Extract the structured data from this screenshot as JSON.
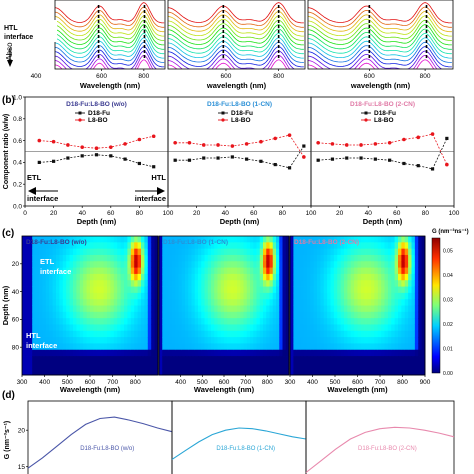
{
  "panel_labels": {
    "b": "(b)",
    "c": "(c)",
    "d": "(d)"
  },
  "chart_data": [
    {
      "id": "a",
      "type": "line",
      "title": "",
      "ylabel": "Absorp",
      "xlabel": "",
      "annotation": "HTL interface",
      "subplots": [
        {
          "xlabel": "Wavelength (nm)",
          "x_ticks": [
            600,
            800
          ],
          "markers_at": [
            586,
            803
          ]
        },
        {
          "xlabel": "wavelength (nm)",
          "x_ticks": [
            600,
            800
          ],
          "markers_at": [
            590,
            800
          ]
        },
        {
          "xlabel": "wavelength (nm)",
          "x_ticks": [
            600,
            800
          ],
          "markers_at": [
            600,
            805
          ]
        }
      ],
      "x_tick_extra": "400",
      "xlim": [
        380,
        900
      ],
      "n_curves": 14
    },
    {
      "id": "b",
      "type": "line",
      "ylabel": "Component ratio (w/w)",
      "ylim": [
        0.0,
        1.0
      ],
      "y_ticks": [
        "0.0",
        "0.2",
        "0.4",
        "0.6",
        "0.8",
        "1.0"
      ],
      "xlim": [
        0,
        100
      ],
      "x_ticks": [
        "0",
        "20",
        "40",
        "60",
        "80",
        "100"
      ],
      "reference_line": 0.5,
      "annotations": {
        "left": "ETL interface",
        "right": "HTL interface"
      },
      "subplots": [
        {
          "title": "D18-Fu:L8-BO (w/o)",
          "title_color": "#3a3a90",
          "xlabel": "Depth (nm)",
          "series": [
            {
              "name": "D18-Fu",
              "color": "#111111",
              "x": [
                10,
                20,
                30,
                40,
                50,
                60,
                70,
                80,
                90
              ],
              "values": [
                0.4,
                0.41,
                0.44,
                0.46,
                0.47,
                0.46,
                0.43,
                0.39,
                0.36
              ]
            },
            {
              "name": "L8-BO",
              "color": "#e8151c",
              "x": [
                10,
                20,
                30,
                40,
                50,
                60,
                70,
                80,
                90
              ],
              "values": [
                0.6,
                0.59,
                0.56,
                0.54,
                0.53,
                0.54,
                0.57,
                0.61,
                0.64
              ]
            }
          ]
        },
        {
          "title": "D18-Fu:L8-BO (1-CN)",
          "title_color": "#2a8fd6",
          "xlabel": "Depth (nm)",
          "series": [
            {
              "name": "D18-Fu",
              "color": "#111111",
              "x": [
                5,
                15,
                25,
                35,
                45,
                55,
                65,
                75,
                85,
                95
              ],
              "values": [
                0.42,
                0.42,
                0.44,
                0.44,
                0.45,
                0.43,
                0.41,
                0.38,
                0.35,
                0.55
              ]
            },
            {
              "name": "L8-BO",
              "color": "#e8151c",
              "x": [
                5,
                15,
                25,
                35,
                45,
                55,
                65,
                75,
                85,
                95
              ],
              "values": [
                0.58,
                0.58,
                0.56,
                0.56,
                0.55,
                0.57,
                0.59,
                0.62,
                0.65,
                0.45
              ]
            }
          ]
        },
        {
          "title": "D18-Fu:L8-BO (2-CN)",
          "title_color": "#e07aa6",
          "xlabel": "Depth (nm)",
          "series": [
            {
              "name": "D18-Fu",
              "color": "#111111",
              "x": [
                5,
                15,
                25,
                35,
                45,
                55,
                65,
                75,
                85,
                95
              ],
              "values": [
                0.42,
                0.43,
                0.44,
                0.44,
                0.43,
                0.42,
                0.39,
                0.37,
                0.34,
                0.62
              ]
            },
            {
              "name": "L8-BO",
              "color": "#e8151c",
              "x": [
                5,
                15,
                25,
                35,
                45,
                55,
                65,
                75,
                85,
                95
              ],
              "values": [
                0.58,
                0.57,
                0.56,
                0.56,
                0.57,
                0.58,
                0.61,
                0.63,
                0.66,
                0.38
              ]
            }
          ]
        }
      ]
    },
    {
      "id": "c",
      "type": "heatmap",
      "ylabel": "Depth (nm)",
      "ylim": [
        100,
        0
      ],
      "y_ticks": [
        "20",
        "40",
        "60",
        "80"
      ],
      "xlim": [
        300,
        900
      ],
      "annotations": {
        "top": "ETL interface",
        "bottom": "HTL interface"
      },
      "colorbar": {
        "label": "G (nm⁻³ns⁻¹)",
        "ticks": [
          "0.00",
          "0.01",
          "0.02",
          "0.03",
          "0.04",
          "0.05"
        ],
        "range": [
          0.0,
          0.055
        ]
      },
      "subplots": [
        {
          "title": "D18-Fu:L8-BO (w/o)",
          "title_color": "#3a3a90",
          "xlabel": "Wavelength (nm)",
          "x_ticks": [
            "300",
            "400",
            "500",
            "600",
            "700",
            "800"
          ]
        },
        {
          "title": "D18-Fu:L8-BO (1-CN)",
          "title_color": "#2a8fd6",
          "xlabel": "Wavelength (nm)",
          "x_ticks": [
            "400",
            "500",
            "600",
            "700",
            "800"
          ]
        },
        {
          "title": "D18-Fu:L8-BO (2-CN)",
          "title_color": "#e07aa6",
          "xlabel": "Wavelength (nm)",
          "x_ticks": [
            "300",
            "400",
            "500",
            "600",
            "700",
            "800",
            "900"
          ]
        }
      ]
    },
    {
      "id": "d",
      "type": "line",
      "ylabel": "G (nm⁻³s⁻¹)",
      "ylim": [
        14,
        24
      ],
      "y_ticks": [
        "15",
        "20"
      ],
      "xlim": [
        0,
        100
      ],
      "subplots": [
        {
          "title": "D18-Fu:L8-BO (w/o)",
          "color": "#4a56a8",
          "x": [
            0,
            10,
            20,
            30,
            40,
            50,
            60,
            70,
            80,
            90,
            100
          ],
          "values": [
            14.8,
            16.2,
            17.8,
            19.4,
            20.8,
            21.6,
            21.8,
            21.4,
            20.9,
            20.3,
            19.8
          ]
        },
        {
          "title": "D18-Fu:L8-BO (1-CN)",
          "color": "#2aa6d6",
          "x": [
            0,
            10,
            20,
            30,
            40,
            50,
            60,
            70,
            80,
            90,
            100
          ],
          "values": [
            16.0,
            17.2,
            18.4,
            19.4,
            20.0,
            20.3,
            20.2,
            19.9,
            19.5,
            19.1,
            18.8
          ]
        },
        {
          "title": "D18-Fu:L8-BO (2-CN)",
          "color": "#e889ad",
          "x": [
            0,
            10,
            20,
            30,
            40,
            50,
            60,
            70,
            80,
            90,
            100
          ],
          "values": [
            14.2,
            15.8,
            17.4,
            18.8,
            19.7,
            20.2,
            20.4,
            20.3,
            20.0,
            19.6,
            19.1
          ]
        }
      ]
    }
  ]
}
